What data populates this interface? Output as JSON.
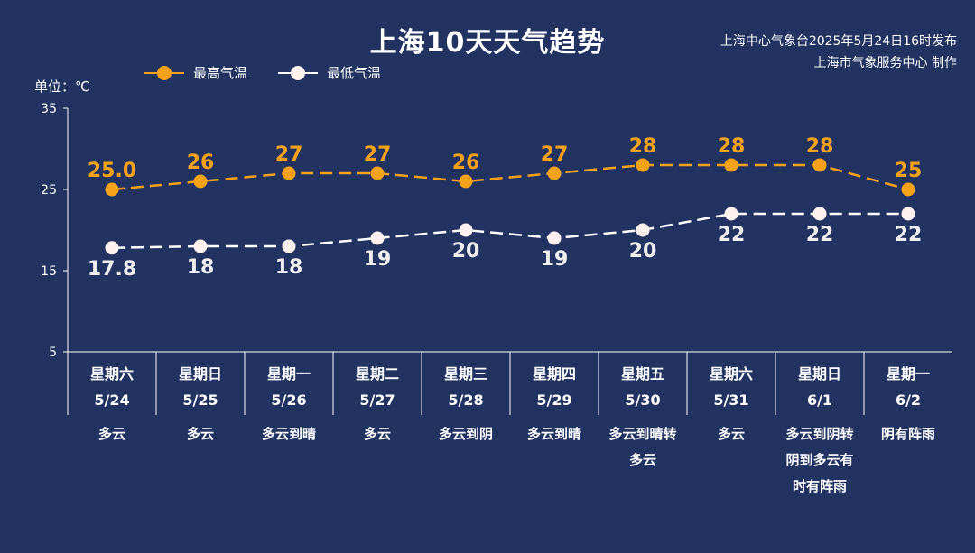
{
  "header": {
    "title": "上海10天天气趋势",
    "issuer_line1": "上海中心气象台2025年5月24日16时发布",
    "issuer_line2": "上海市气象服务中心 制作",
    "unit": "单位：℃"
  },
  "colors": {
    "background": "#223362",
    "high": "#f5a21b",
    "low": "#ffffff",
    "axis": "#ffffff"
  },
  "chart_data": {
    "type": "line",
    "ylim": [
      5,
      35
    ],
    "yticks": [
      5,
      15,
      25,
      35
    ],
    "grid": false,
    "legend_position": "top-left",
    "categories": [
      "5/24",
      "5/25",
      "5/26",
      "5/27",
      "5/28",
      "5/29",
      "5/30",
      "5/31",
      "6/1",
      "6/2"
    ],
    "series": [
      {
        "name": "最高气温",
        "values": [
          25.0,
          26,
          27,
          27,
          26,
          27,
          28,
          28,
          28,
          25
        ],
        "labels": [
          "25.0",
          "26",
          "27",
          "27",
          "26",
          "27",
          "28",
          "28",
          "28",
          "25"
        ]
      },
      {
        "name": "最低气温",
        "values": [
          17.8,
          18,
          18,
          19,
          20,
          19,
          20,
          22,
          22,
          22
        ],
        "labels": [
          "17.8",
          "18",
          "18",
          "19",
          "20",
          "19",
          "20",
          "22",
          "22",
          "22"
        ]
      }
    ]
  },
  "days": [
    {
      "weekday": "星期六",
      "date": "5/24",
      "weather": "多云"
    },
    {
      "weekday": "星期日",
      "date": "5/25",
      "weather": "多云"
    },
    {
      "weekday": "星期一",
      "date": "5/26",
      "weather": "多云到晴"
    },
    {
      "weekday": "星期二",
      "date": "5/27",
      "weather": "多云"
    },
    {
      "weekday": "星期三",
      "date": "5/28",
      "weather": "多云到阴"
    },
    {
      "weekday": "星期四",
      "date": "5/29",
      "weather": "多云到晴"
    },
    {
      "weekday": "星期五",
      "date": "5/30",
      "weather": "多云到晴转多云"
    },
    {
      "weekday": "星期六",
      "date": "5/31",
      "weather": "多云"
    },
    {
      "weekday": "星期日",
      "date": "6/1",
      "weather": "多云到阴转阴到多云有时有阵雨"
    },
    {
      "weekday": "星期一",
      "date": "6/2",
      "weather": "阴有阵雨"
    }
  ]
}
